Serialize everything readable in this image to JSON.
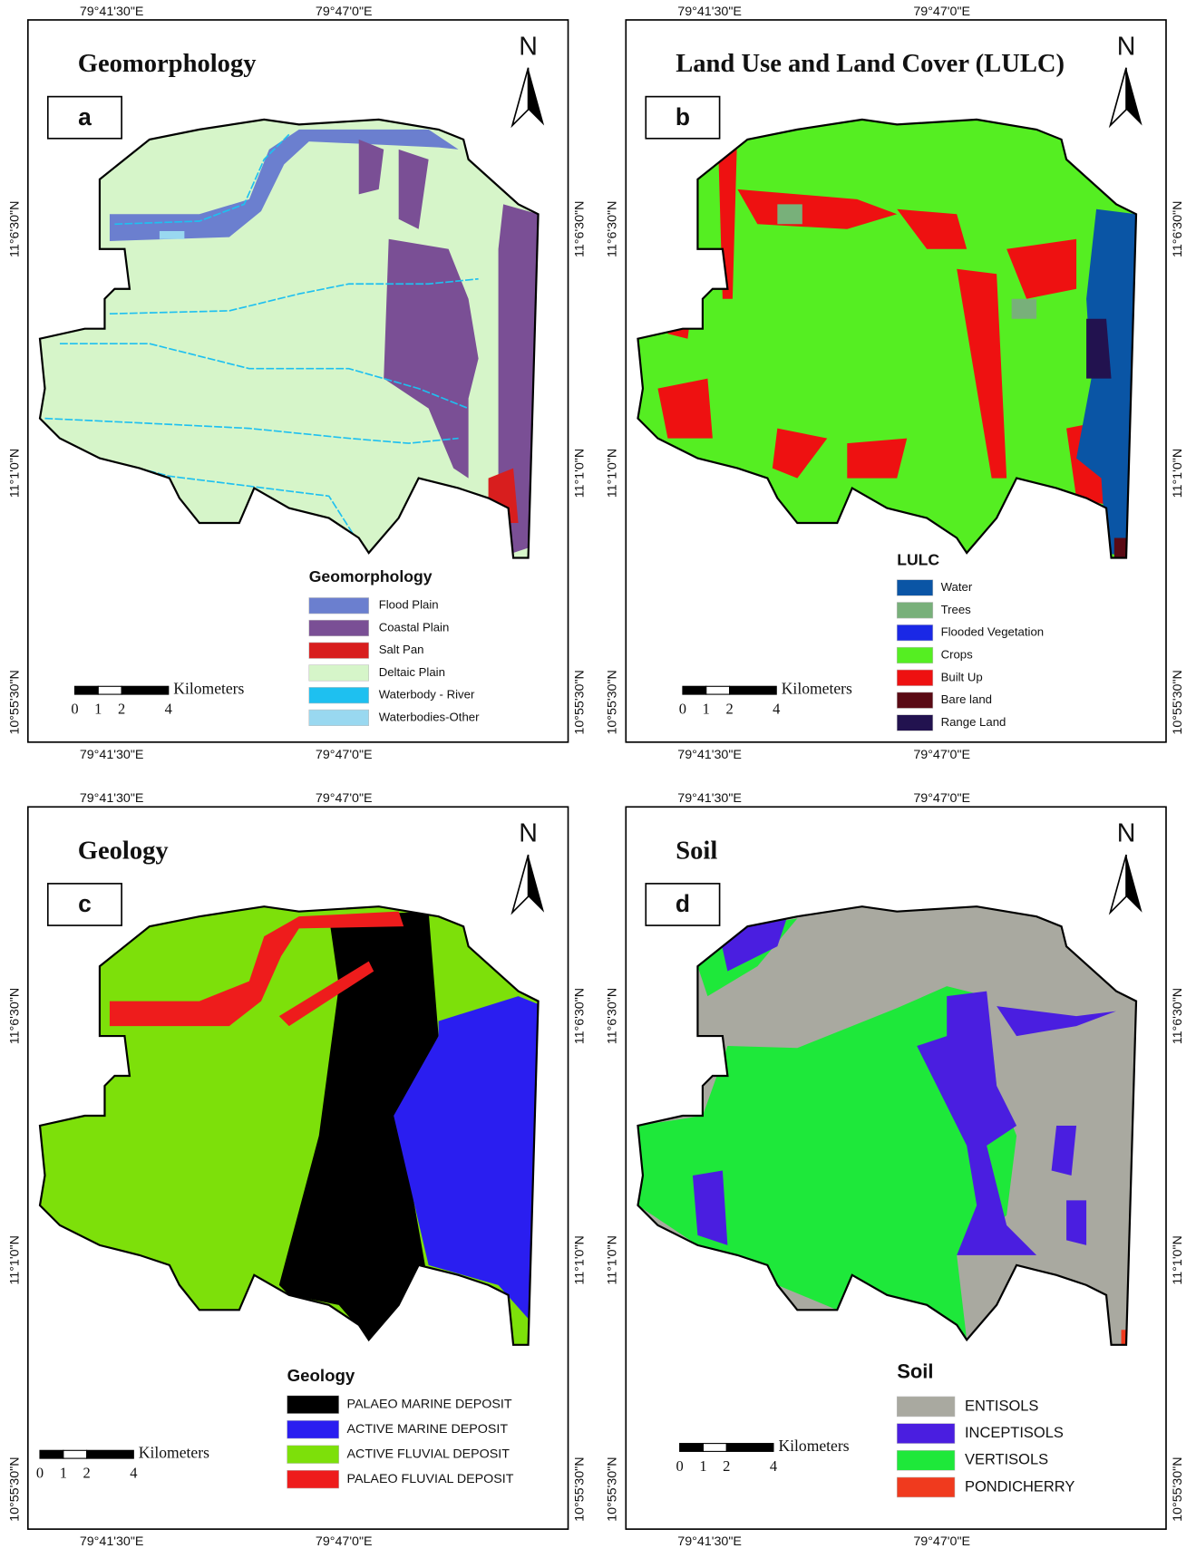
{
  "panels": [
    {
      "title": "Geomorphology",
      "letter": "a",
      "north": "N",
      "top_labels": [
        "79°41'30\"E",
        "79°47'0\"E"
      ],
      "bottom_labels": [
        "79°41'30\"E",
        "79°47'0\"E"
      ],
      "left_labels": [
        "11°6'30\"N",
        "11°1'0\"N",
        "10°55'30\"N"
      ],
      "right_labels": [
        "11°6'30\"N",
        "11°1'0\"N",
        "10°55'30\"N"
      ],
      "scale_unit": "Kilometers",
      "scale_ticks": [
        0,
        1,
        2,
        4
      ],
      "legend": {
        "title": "Geomorphology",
        "items": [
          {
            "label": "Flood Plain",
            "color": "#6b7fcf"
          },
          {
            "label": "Coastal Plain",
            "color": "#7a4f95"
          },
          {
            "label": "Salt Pan",
            "color": "#d81e1e"
          },
          {
            "label": "Deltaic Plain",
            "color": "#d6f5c9"
          },
          {
            "label": "Waterbody - River",
            "color": "#1ec0f0"
          },
          {
            "label": "Waterbodies-Other",
            "color": "#99d8f0"
          }
        ]
      }
    },
    {
      "title": "Land Use and Land Cover (LULC)",
      "letter": "b",
      "north": "N",
      "top_labels": [
        "79°41'30\"E",
        "79°47'0\"E"
      ],
      "bottom_labels": [
        "79°41'30\"E",
        "79°47'0\"E"
      ],
      "left_labels": [
        "11°6'30\"N",
        "11°1'0\"N",
        "10°55'30\"N"
      ],
      "right_labels": [
        "11°6'30\"N",
        "11°1'0\"N",
        "10°55'30\"N"
      ],
      "scale_unit": "Kilometers",
      "scale_ticks": [
        0,
        1,
        2,
        4
      ],
      "legend": {
        "title": "LULC",
        "items": [
          {
            "label": "Water",
            "color": "#0a55a5"
          },
          {
            "label": "Trees",
            "color": "#78b07a"
          },
          {
            "label": "Flooded Vegetation",
            "color": "#1a28e6"
          },
          {
            "label": "Crops",
            "color": "#55ee22"
          },
          {
            "label": "Built Up",
            "color": "#ee1111"
          },
          {
            "label": "Bare land",
            "color": "#5a0a14"
          },
          {
            "label": "Range Land",
            "color": "#22124f"
          }
        ]
      }
    },
    {
      "title": "Geology",
      "letter": "c",
      "north": "N",
      "top_labels": [
        "79°41'30\"E",
        "79°47'0\"E"
      ],
      "bottom_labels": [
        "79°41'30\"E",
        "79°47'0\"E"
      ],
      "left_labels": [
        "11°6'30\"N",
        "11°1'0\"N",
        "10°55'30\"N"
      ],
      "right_labels": [
        "11°6'30\"N",
        "11°1'0\"N",
        "10°55'30\"N"
      ],
      "scale_unit": "Kilometers",
      "scale_ticks": [
        0,
        1,
        2,
        4
      ],
      "legend": {
        "title": "Geology",
        "items": [
          {
            "label": "PALAEO MARINE DEPOSIT",
            "color": "#000000"
          },
          {
            "label": "ACTIVE MARINE DEPOSIT",
            "color": "#2a1ef0"
          },
          {
            "label": "ACTIVE FLUVIAL DEPOSIT",
            "color": "#7de00a"
          },
          {
            "label": "PALAEO FLUVIAL DEPOSIT",
            "color": "#ee1c1c"
          }
        ]
      }
    },
    {
      "title": "Soil",
      "letter": "d",
      "north": "N",
      "top_labels": [
        "79°41'30\"E",
        "79°47'0\"E"
      ],
      "bottom_labels": [
        "79°41'30\"E",
        "79°47'0\"E"
      ],
      "left_labels": [
        "11°6'30\"N",
        "11°1'0\"N",
        "10°55'30\"N"
      ],
      "right_labels": [
        "11°6'30\"N",
        "11°1'0\"N",
        "10°55'30\"N"
      ],
      "scale_unit": "Kilometers",
      "scale_ticks": [
        0,
        1,
        2,
        4
      ],
      "legend": {
        "title": "Soil",
        "items": [
          {
            "label": "ENTISOLS",
            "color": "#a9a9a0"
          },
          {
            "label": "INCEPTISOLS",
            "color": "#4a1ee0"
          },
          {
            "label": "VERTISOLS",
            "color": "#1ee83a"
          },
          {
            "label": "PONDICHERRY",
            "color": "#f03a1e"
          }
        ]
      }
    }
  ]
}
